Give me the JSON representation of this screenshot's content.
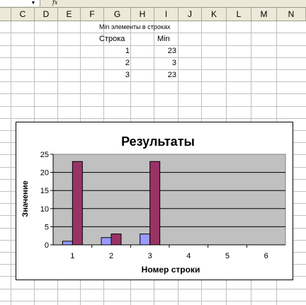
{
  "formula_bar": {
    "fx_label": "fx"
  },
  "columns": [
    "C",
    "D",
    "E",
    "F",
    "G",
    "H",
    "I",
    "J",
    "K",
    "L",
    "M",
    "N"
  ],
  "sheet": {
    "title": "Min элементы в строках",
    "header_row": "Строка",
    "header_min": "Min",
    "rows": [
      {
        "row": "1",
        "min": "23"
      },
      {
        "row": "2",
        "min": "3"
      },
      {
        "row": "3",
        "min": "23"
      }
    ]
  },
  "chart_data": {
    "type": "bar",
    "title": "Результаты",
    "xlabel": "Номер строки",
    "ylabel": "Значение",
    "categories": [
      "1",
      "2",
      "3",
      "4",
      "5",
      "6"
    ],
    "ylim": [
      0,
      25
    ],
    "yticks": [
      "0",
      "5",
      "10",
      "15",
      "20",
      "25"
    ],
    "grid": true,
    "series": [
      {
        "color": "#9999ff",
        "values": [
          1,
          2,
          3,
          null,
          null,
          null
        ]
      },
      {
        "color": "#993366",
        "values": [
          23,
          3,
          23,
          null,
          null,
          null
        ]
      }
    ],
    "plot_background": "#c0c0c0"
  }
}
